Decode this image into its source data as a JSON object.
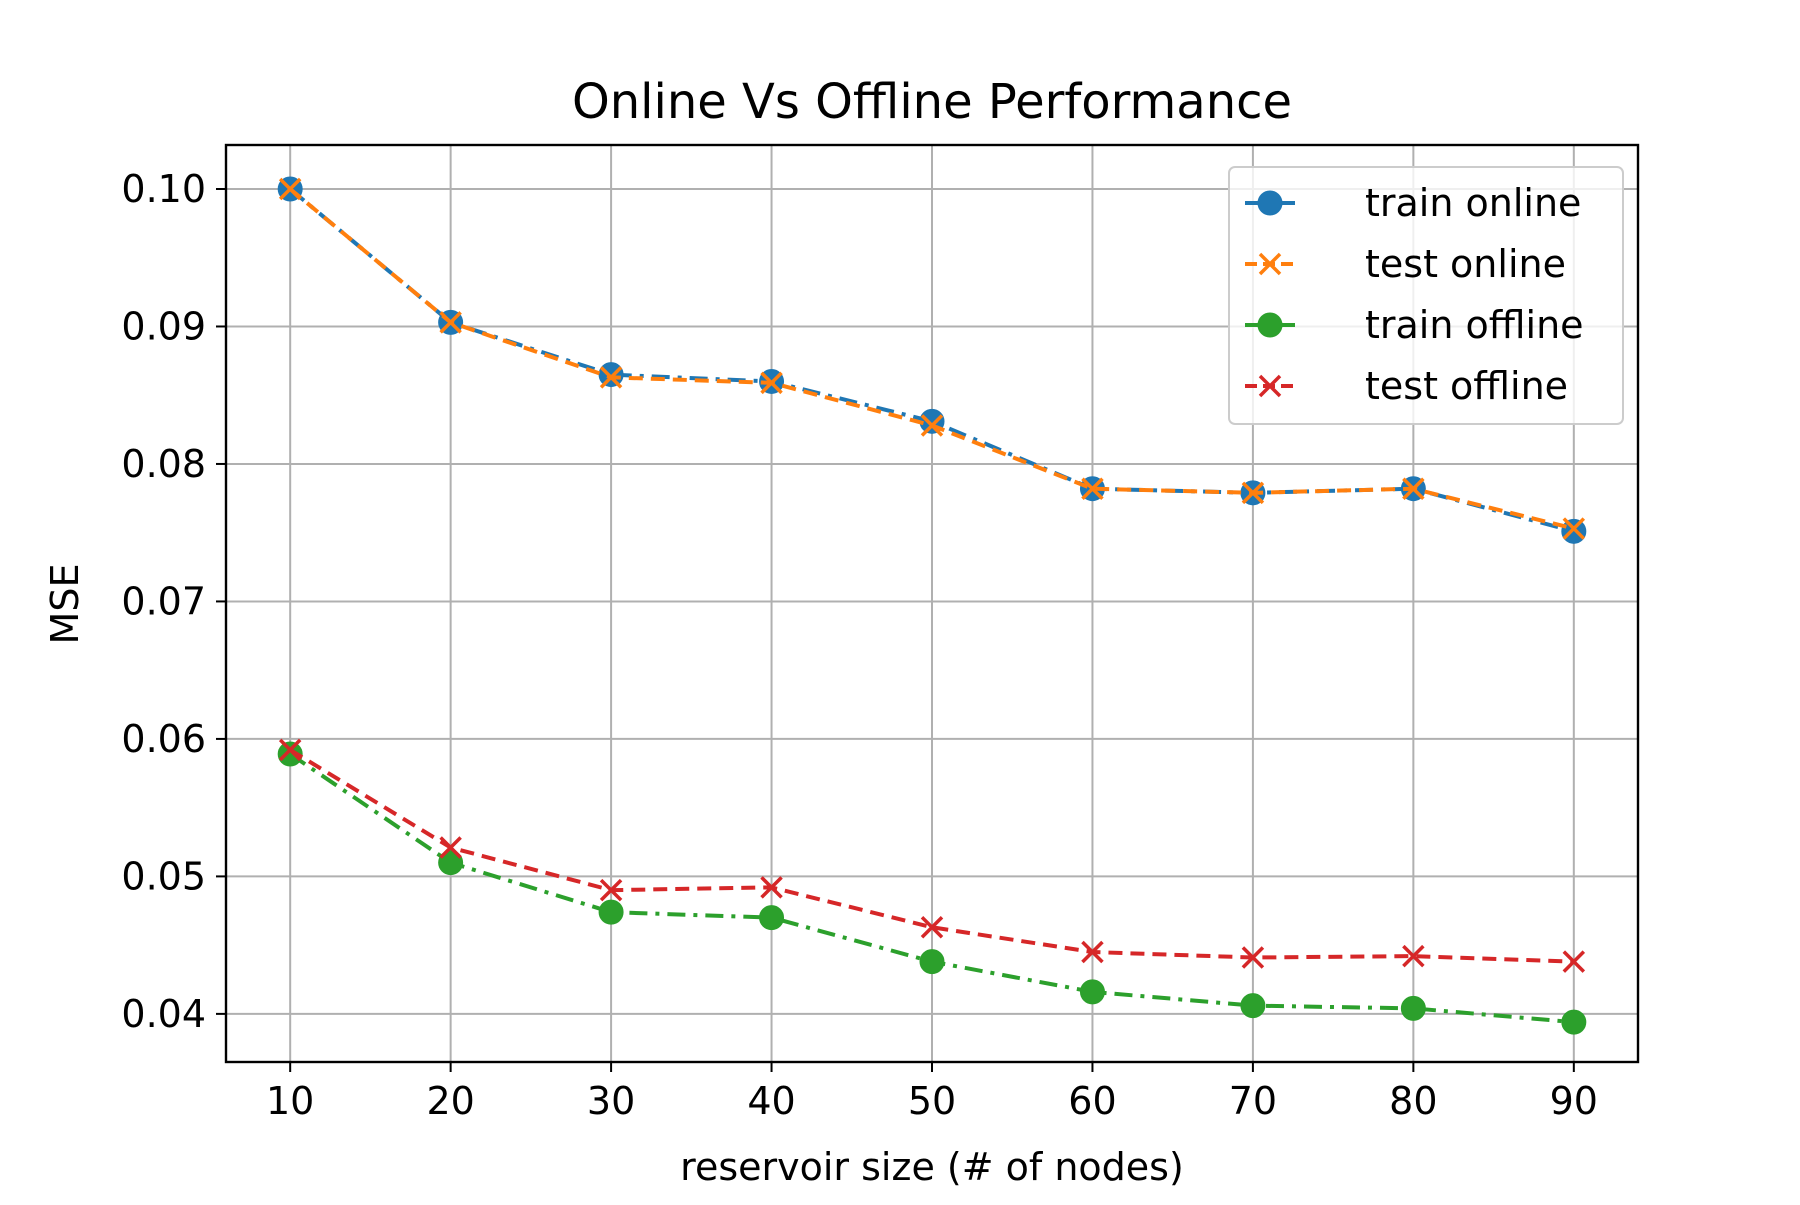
{
  "chart_data": {
    "type": "line",
    "title": "Online Vs Offline Performance",
    "xlabel": "reservoir size (# of nodes)",
    "ylabel": "MSE",
    "x": [
      10,
      20,
      30,
      40,
      50,
      60,
      70,
      80,
      90
    ],
    "xlim": [
      6,
      94
    ],
    "ylim": [
      0.0365,
      0.1032
    ],
    "xticks": [
      10,
      20,
      30,
      40,
      50,
      60,
      70,
      80,
      90
    ],
    "yticks": [
      0.04,
      0.05,
      0.06,
      0.07,
      0.08,
      0.09,
      0.1
    ],
    "ytick_labels": [
      "0.04",
      "0.05",
      "0.06",
      "0.07",
      "0.08",
      "0.09",
      "0.10"
    ],
    "grid": true,
    "legend_position": "top-right",
    "series": [
      {
        "name": "train online",
        "color": "#1f77b4",
        "marker": "circle",
        "linestyle": "dash-dot",
        "values": [
          0.1,
          0.0903,
          0.0865,
          0.086,
          0.0831,
          0.0782,
          0.0779,
          0.0782,
          0.0751
        ]
      },
      {
        "name": "test online",
        "color": "#ff7f0e",
        "marker": "x",
        "linestyle": "dashed",
        "values": [
          0.1,
          0.0903,
          0.0863,
          0.0859,
          0.0828,
          0.0782,
          0.0779,
          0.0782,
          0.0753
        ]
      },
      {
        "name": "train offline",
        "color": "#2ca02c",
        "marker": "circle",
        "linestyle": "dash-dot",
        "values": [
          0.0589,
          0.051,
          0.0474,
          0.047,
          0.0438,
          0.0416,
          0.0406,
          0.0404,
          0.0394
        ]
      },
      {
        "name": "test offline",
        "color": "#d62728",
        "marker": "x",
        "linestyle": "dashed",
        "values": [
          0.0592,
          0.0521,
          0.049,
          0.0492,
          0.0463,
          0.0445,
          0.0441,
          0.0442,
          0.0438
        ]
      }
    ]
  }
}
